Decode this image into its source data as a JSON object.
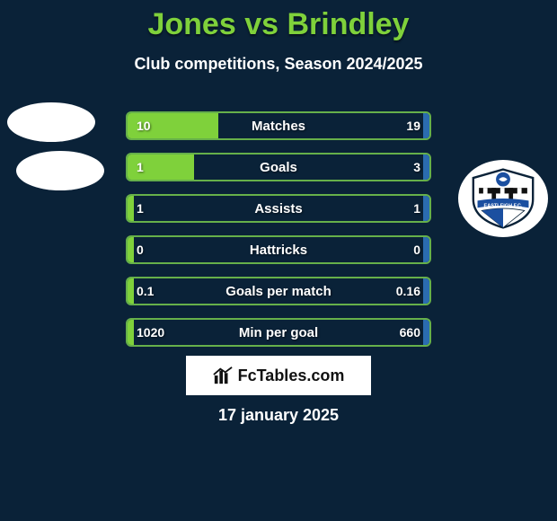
{
  "title": "Jones vs Brindley",
  "subtitle": "Club competitions, Season 2024/2025",
  "date": "17 january 2025",
  "brand": "FcTables.com",
  "colors": {
    "bg": "#0a2238",
    "accent": "#7fd13b",
    "border": "#66b04a",
    "right_fill": "#2b6cb0",
    "text": "#ffffff"
  },
  "rows": [
    {
      "label": "Matches",
      "left_val": "10",
      "right_val": "19",
      "left_pct": 30,
      "right_pct": 2
    },
    {
      "label": "Goals",
      "left_val": "1",
      "right_val": "3",
      "left_pct": 22,
      "right_pct": 2
    },
    {
      "label": "Assists",
      "left_val": "1",
      "right_val": "1",
      "left_pct": 2,
      "right_pct": 2
    },
    {
      "label": "Hattricks",
      "left_val": "0",
      "right_val": "0",
      "left_pct": 2,
      "right_pct": 2
    },
    {
      "label": "Goals per match",
      "left_val": "0.1",
      "right_val": "0.16",
      "left_pct": 2,
      "right_pct": 2
    },
    {
      "label": "Min per goal",
      "left_val": "1020",
      "right_val": "660",
      "left_pct": 2,
      "right_pct": 2
    }
  ]
}
